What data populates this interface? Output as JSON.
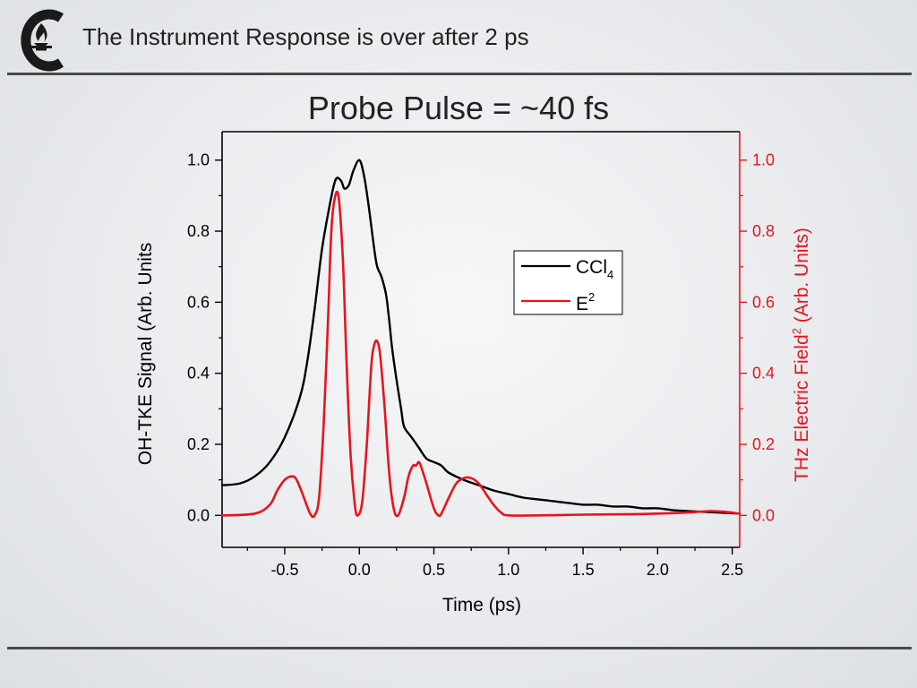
{
  "slide": {
    "title": "The Instrument Response is over after 2 ps",
    "logo_icon": "torch-c-logo-icon"
  },
  "colors": {
    "black": "#000000",
    "red": "#e8141c",
    "rule": "#4a4a4a"
  },
  "chart_data": {
    "type": "line",
    "title": "Probe Pulse = ~40 fs",
    "xlabel": "Time (ps)",
    "ylabel_left": "OH-TKE Signal (Arb. Units",
    "ylabel_right_parts": [
      "THz Electric Field",
      "2",
      " (Arb. Units)"
    ],
    "xlim": [
      -0.92,
      2.55
    ],
    "ylim_left": [
      -0.09,
      1.08
    ],
    "ylim_right": [
      -0.09,
      1.08
    ],
    "x_ticks": [
      -0.5,
      0.0,
      0.5,
      1.0,
      1.5,
      2.0,
      2.5
    ],
    "x_tick_labels": [
      "-0.5",
      "0.0",
      "0.5",
      "1.0",
      "1.5",
      "2.0",
      "2.5"
    ],
    "y_ticks": [
      0.0,
      0.2,
      0.4,
      0.6,
      0.8,
      1.0
    ],
    "y_tick_labels": [
      "0.0",
      "0.2",
      "0.4",
      "0.6",
      "0.8",
      "1.0"
    ],
    "grid": false,
    "legend": {
      "placement": "upper-right-inside",
      "entries": [
        {
          "label": "CCl",
          "sub": "4",
          "color": "#000000"
        },
        {
          "label": "E",
          "sup": "2",
          "color": "#e8141c"
        }
      ]
    },
    "series": [
      {
        "name": "CCl4",
        "axis": "left",
        "color": "#000000",
        "x": [
          -0.92,
          -0.8,
          -0.7,
          -0.6,
          -0.5,
          -0.4,
          -0.35,
          -0.3,
          -0.25,
          -0.2,
          -0.17,
          -0.15,
          -0.12,
          -0.1,
          -0.07,
          -0.04,
          0.0,
          0.03,
          0.06,
          0.1,
          0.12,
          0.15,
          0.18,
          0.2,
          0.22,
          0.25,
          0.28,
          0.3,
          0.35,
          0.4,
          0.45,
          0.5,
          0.55,
          0.6,
          0.7,
          0.8,
          0.9,
          1.0,
          1.1,
          1.2,
          1.3,
          1.4,
          1.5,
          1.6,
          1.7,
          1.8,
          1.9,
          2.0,
          2.1,
          2.2,
          2.3,
          2.4,
          2.5,
          2.55
        ],
        "y": [
          0.085,
          0.09,
          0.11,
          0.15,
          0.22,
          0.33,
          0.43,
          0.58,
          0.75,
          0.87,
          0.93,
          0.95,
          0.94,
          0.92,
          0.93,
          0.97,
          1.0,
          0.96,
          0.88,
          0.75,
          0.7,
          0.67,
          0.62,
          0.55,
          0.47,
          0.38,
          0.3,
          0.25,
          0.22,
          0.19,
          0.16,
          0.15,
          0.14,
          0.12,
          0.1,
          0.085,
          0.07,
          0.06,
          0.05,
          0.045,
          0.04,
          0.035,
          0.03,
          0.03,
          0.025,
          0.025,
          0.02,
          0.02,
          0.015,
          0.012,
          0.01,
          0.008,
          0.006,
          0.005
        ]
      },
      {
        "name": "E2",
        "axis": "right",
        "color": "#e8141c",
        "x": [
          -0.92,
          -0.7,
          -0.6,
          -0.55,
          -0.5,
          -0.45,
          -0.42,
          -0.38,
          -0.33,
          -0.3,
          -0.27,
          -0.24,
          -0.21,
          -0.19,
          -0.17,
          -0.14,
          -0.11,
          -0.09,
          -0.06,
          -0.03,
          -0.01,
          0.02,
          0.05,
          0.08,
          0.1,
          0.12,
          0.14,
          0.17,
          0.2,
          0.23,
          0.26,
          0.3,
          0.33,
          0.36,
          0.38,
          0.4,
          0.42,
          0.45,
          0.5,
          0.53,
          0.55,
          0.6,
          0.65,
          0.7,
          0.75,
          0.8,
          0.85,
          0.9,
          0.95,
          1.0,
          1.2,
          1.5,
          1.8,
          2.0,
          2.2,
          2.35,
          2.45,
          2.55
        ],
        "y": [
          0.0,
          0.005,
          0.03,
          0.07,
          0.1,
          0.11,
          0.1,
          0.06,
          0.005,
          0.0,
          0.05,
          0.25,
          0.55,
          0.78,
          0.88,
          0.9,
          0.72,
          0.48,
          0.18,
          0.03,
          0.0,
          0.04,
          0.2,
          0.42,
          0.48,
          0.49,
          0.45,
          0.3,
          0.12,
          0.02,
          0.0,
          0.05,
          0.11,
          0.14,
          0.14,
          0.15,
          0.13,
          0.09,
          0.02,
          0.0,
          0.005,
          0.05,
          0.09,
          0.105,
          0.105,
          0.09,
          0.06,
          0.03,
          0.008,
          0.0,
          0.0,
          0.002,
          0.003,
          0.005,
          0.008,
          0.012,
          0.01,
          0.005
        ]
      }
    ]
  }
}
